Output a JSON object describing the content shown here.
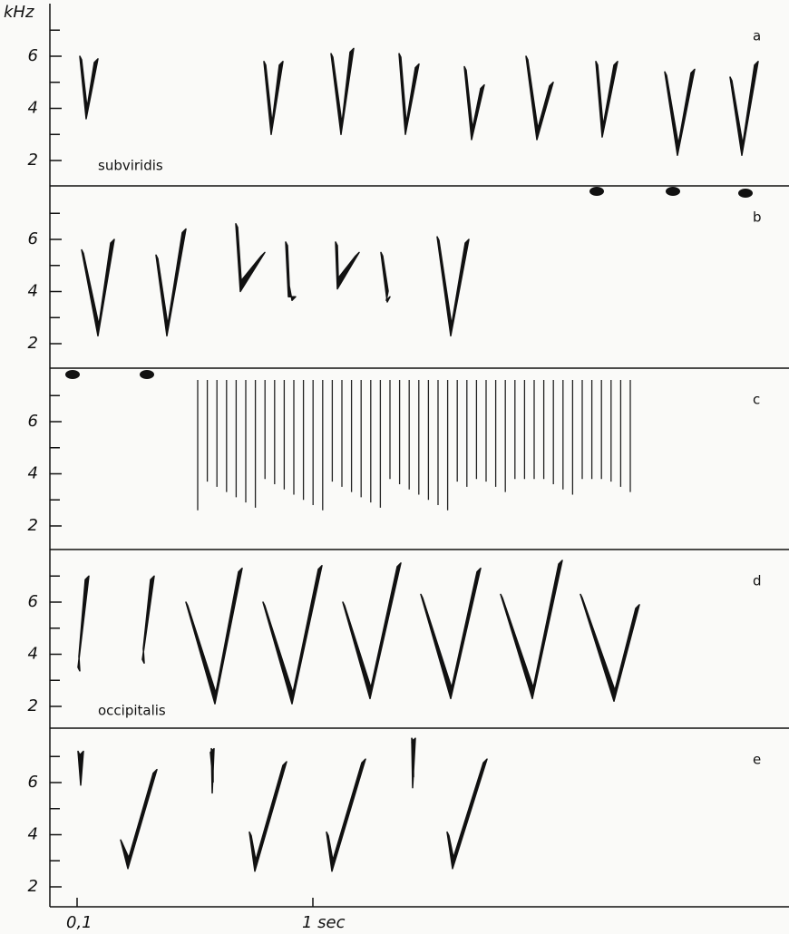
{
  "unit": "kHz",
  "yticks": [
    2,
    4,
    6
  ],
  "panels": [
    {
      "letter": "a",
      "species": "subviridis"
    },
    {
      "letter": "b"
    },
    {
      "letter": "c"
    },
    {
      "letter": "d",
      "species": "occipitalis"
    },
    {
      "letter": "e"
    }
  ],
  "x_axis": {
    "ticks": [
      {
        "value": 0.1,
        "label": "0,1"
      },
      {
        "value": 1,
        "label": "1 sec"
      }
    ]
  }
}
